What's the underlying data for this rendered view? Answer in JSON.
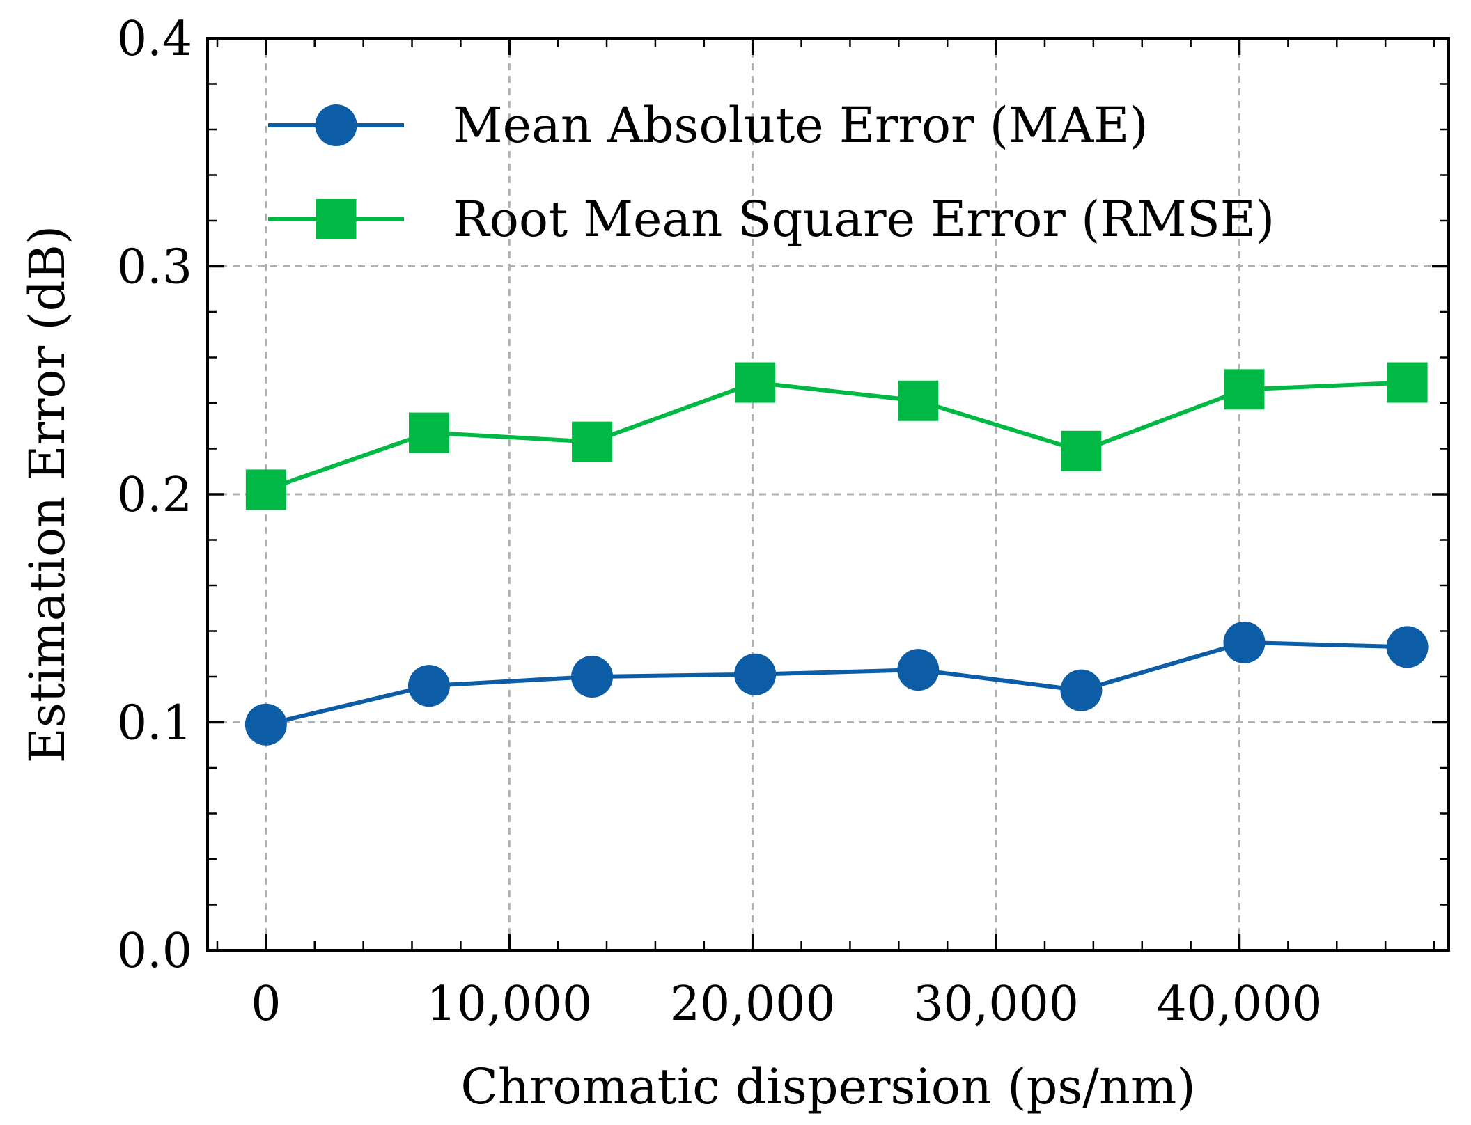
{
  "chart_data": {
    "type": "line",
    "title": "",
    "xlabel": "Chromatic dispersion (ps/nm)",
    "ylabel": "Estimation Error (dB)",
    "xlim": [
      -2400,
      48600
    ],
    "ylim": [
      0.0,
      0.4
    ],
    "x_ticks": [
      0,
      10000,
      20000,
      30000,
      40000
    ],
    "x_tick_labels": [
      "0",
      "10,000",
      "20,000",
      "30,000",
      "40,000"
    ],
    "y_ticks": [
      0.0,
      0.1,
      0.2,
      0.3,
      0.4
    ],
    "y_tick_labels": [
      "0.0",
      "0.1",
      "0.2",
      "0.3",
      "0.4"
    ],
    "grid": true,
    "legend_position": "top-left",
    "x": [
      0,
      6700,
      13400,
      20100,
      26800,
      33500,
      40200,
      46900
    ],
    "series": [
      {
        "name": "Mean Absolute Error (MAE)",
        "marker": "circle",
        "color": "#0C5DA5",
        "values": [
          0.099,
          0.116,
          0.12,
          0.121,
          0.123,
          0.114,
          0.135,
          0.133
        ]
      },
      {
        "name": "Root Mean Square Error (RMSE)",
        "marker": "square",
        "color": "#00B945",
        "values": [
          0.202,
          0.227,
          0.223,
          0.249,
          0.241,
          0.219,
          0.246,
          0.249
        ]
      }
    ]
  }
}
